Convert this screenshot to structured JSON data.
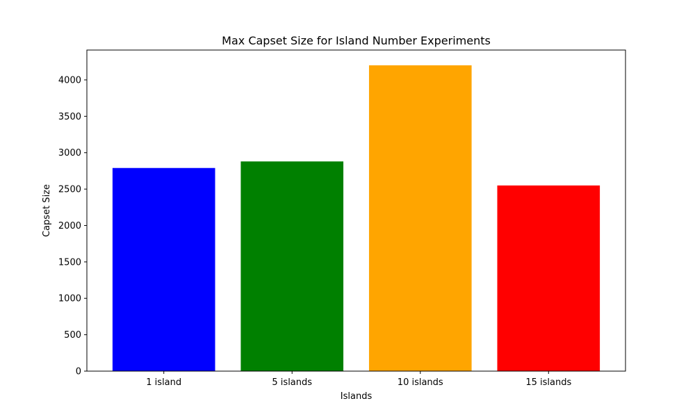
{
  "chart_data": {
    "type": "bar",
    "title": "Max Capset Size for Island Number Experiments",
    "xlabel": "Islands",
    "ylabel": "Capset Size",
    "categories": [
      "1 island",
      "5 islands",
      "10 islands",
      "15 islands"
    ],
    "values": [
      2790,
      2880,
      4200,
      2550
    ],
    "colors": [
      "#0000ff",
      "#008000",
      "#ffa500",
      "#ff0000"
    ],
    "ylim": [
      0,
      4410
    ],
    "yticks": [
      0,
      500,
      1000,
      1500,
      2000,
      2500,
      3000,
      3500,
      4000
    ],
    "grid": false,
    "legend": "none"
  }
}
